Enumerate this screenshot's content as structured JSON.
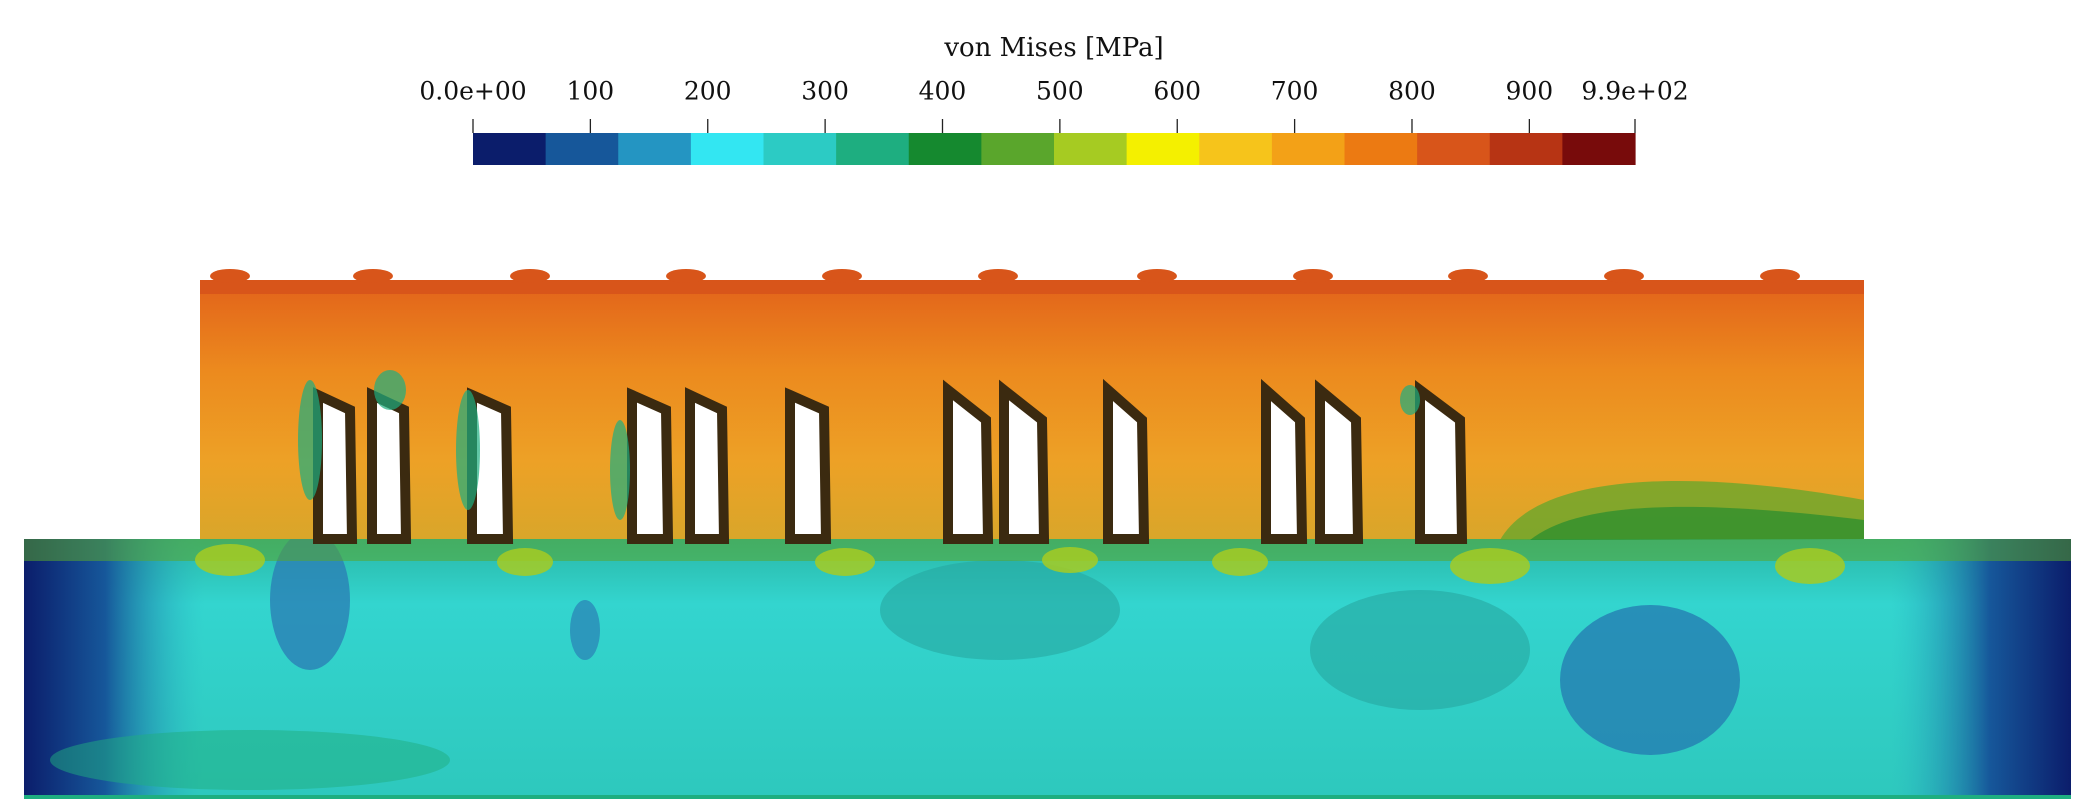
{
  "colorbar": {
    "title": "von Mises [MPa]",
    "range": [
      0,
      990
    ],
    "ticks": [
      {
        "value": 0,
        "label": "0.0e+00"
      },
      100,
      200,
      300,
      400,
      500,
      600,
      700,
      800,
      900,
      {
        "value": 990,
        "label": "9.9e+02"
      }
    ],
    "colors": [
      "#0b1d6b",
      "#16579a",
      "#2495c2",
      "#33e6f2",
      "#2ccbc4",
      "#1eae80",
      "#15892f",
      "#5aa62c",
      "#a6cb22",
      "#f4f000",
      "#f6c41b",
      "#f3a117",
      "#ec7a12",
      "#d8551a",
      "#b73414",
      "#780b0b"
    ]
  }
}
